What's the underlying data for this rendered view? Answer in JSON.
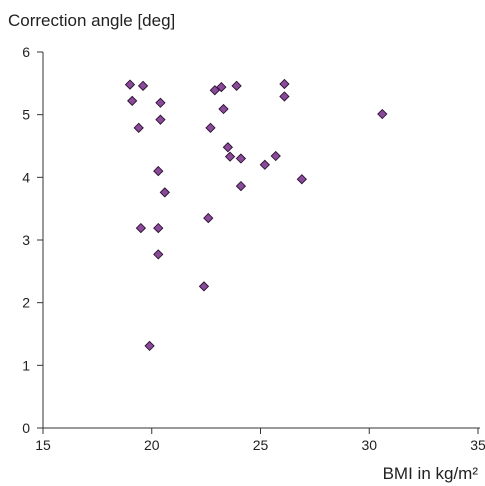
{
  "chart_data": {
    "type": "scatter",
    "title": "",
    "ylabel": "Correction angle [deg]",
    "xlabel": "BMI in kg/m²",
    "xlim": [
      15,
      35
    ],
    "ylim": [
      0,
      6
    ],
    "x_ticks": [
      15,
      20,
      25,
      30,
      35
    ],
    "y_ticks": [
      0,
      1,
      2,
      3,
      4,
      5,
      6
    ],
    "grid": false,
    "legend": "none",
    "marker": "diamond",
    "marker_color": "#8a4a9a",
    "points": [
      {
        "x": 19.0,
        "y": 5.48
      },
      {
        "x": 19.1,
        "y": 5.22
      },
      {
        "x": 19.6,
        "y": 5.46
      },
      {
        "x": 20.4,
        "y": 5.19
      },
      {
        "x": 19.4,
        "y": 4.79
      },
      {
        "x": 20.4,
        "y": 4.92
      },
      {
        "x": 20.3,
        "y": 4.1
      },
      {
        "x": 20.6,
        "y": 3.76
      },
      {
        "x": 19.5,
        "y": 3.19
      },
      {
        "x": 20.3,
        "y": 3.19
      },
      {
        "x": 20.3,
        "y": 2.77
      },
      {
        "x": 19.9,
        "y": 1.31
      },
      {
        "x": 22.4,
        "y": 2.26
      },
      {
        "x": 22.6,
        "y": 3.35
      },
      {
        "x": 22.7,
        "y": 4.79
      },
      {
        "x": 22.9,
        "y": 5.39
      },
      {
        "x": 23.2,
        "y": 5.44
      },
      {
        "x": 23.3,
        "y": 5.09
      },
      {
        "x": 23.5,
        "y": 4.48
      },
      {
        "x": 23.6,
        "y": 4.33
      },
      {
        "x": 23.9,
        "y": 5.46
      },
      {
        "x": 24.1,
        "y": 4.3
      },
      {
        "x": 24.1,
        "y": 3.86
      },
      {
        "x": 25.2,
        "y": 4.2
      },
      {
        "x": 25.7,
        "y": 4.34
      },
      {
        "x": 26.1,
        "y": 5.29
      },
      {
        "x": 26.1,
        "y": 5.49
      },
      {
        "x": 26.9,
        "y": 3.97
      },
      {
        "x": 30.6,
        "y": 5.01
      }
    ]
  }
}
